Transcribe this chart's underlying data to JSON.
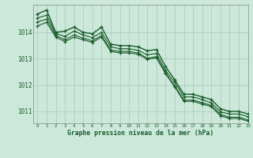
{
  "background_color": "#cce8da",
  "grid_color": "#aacfbe",
  "line_color": "#1a5c2a",
  "spine_color": "#888888",
  "title": "Graphe pression niveau de la mer (hPa)",
  "xlim": [
    -0.5,
    23
  ],
  "ylim": [
    1010.55,
    1015.05
  ],
  "yticks": [
    1011,
    1012,
    1013,
    1014
  ],
  "xticks": [
    0,
    1,
    2,
    3,
    4,
    5,
    6,
    7,
    8,
    9,
    10,
    11,
    12,
    13,
    14,
    15,
    16,
    17,
    18,
    19,
    20,
    21,
    22,
    23
  ],
  "series": [
    [
      1014.7,
      1014.85,
      1014.0,
      1014.05,
      1014.2,
      1014.0,
      1013.95,
      1014.2,
      1013.55,
      1013.5,
      1013.5,
      1013.45,
      1013.3,
      1013.35,
      1012.7,
      1012.2,
      1011.65,
      1011.65,
      1011.55,
      1011.45,
      1011.1,
      1011.0,
      1011.0,
      1010.9
    ],
    [
      1014.55,
      1014.65,
      1013.95,
      1013.85,
      1014.05,
      1013.9,
      1013.8,
      1014.0,
      1013.45,
      1013.38,
      1013.38,
      1013.32,
      1013.15,
      1013.2,
      1012.55,
      1012.1,
      1011.55,
      1011.55,
      1011.45,
      1011.32,
      1010.98,
      1010.9,
      1010.9,
      1010.8
    ],
    [
      1014.4,
      1014.5,
      1013.88,
      1013.72,
      1013.9,
      1013.78,
      1013.68,
      1013.88,
      1013.33,
      1013.28,
      1013.28,
      1013.22,
      1013.02,
      1013.08,
      1012.47,
      1011.97,
      1011.43,
      1011.43,
      1011.33,
      1011.23,
      1010.88,
      1010.78,
      1010.78,
      1010.68
    ],
    [
      1014.25,
      1014.38,
      1013.82,
      1013.65,
      1013.82,
      1013.72,
      1013.62,
      1013.82,
      1013.28,
      1013.22,
      1013.22,
      1013.17,
      1012.98,
      1013.03,
      1012.43,
      1011.93,
      1011.38,
      1011.38,
      1011.28,
      1011.18,
      1010.83,
      1010.73,
      1010.73,
      1010.63
    ]
  ]
}
